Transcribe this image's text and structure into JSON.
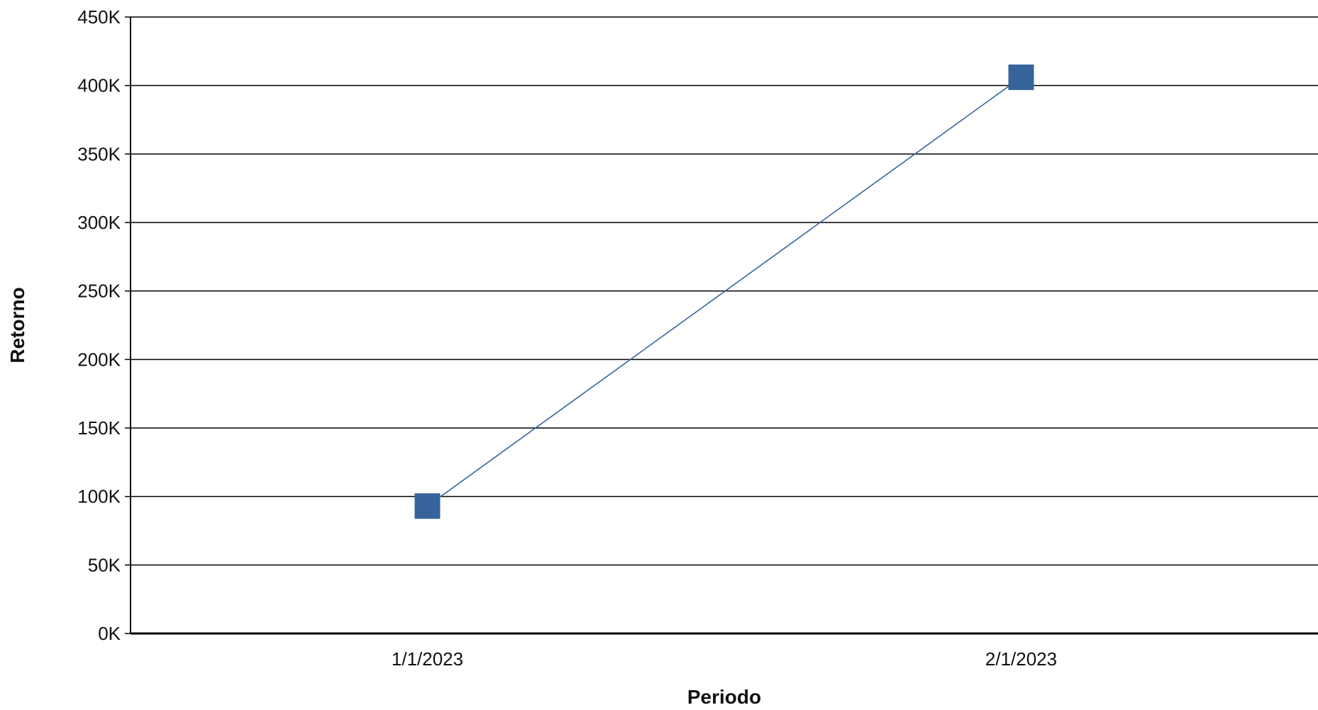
{
  "chart_data": {
    "type": "line",
    "title": "",
    "xlabel": "Periodo",
    "ylabel": "Retorno",
    "categories": [
      "1/1/2023",
      "2/1/2023"
    ],
    "series": [
      {
        "values": [
          93000,
          406000
        ]
      }
    ],
    "ylim": [
      0,
      450000
    ],
    "yticks": [
      "0K",
      "50K",
      "100K",
      "150K",
      "200K",
      "250K",
      "300K",
      "350K",
      "400K",
      "450K"
    ],
    "grid": true,
    "legend": "none",
    "colors": {
      "series": "#36649a",
      "grid": "#000000",
      "axis": "#000000"
    }
  }
}
